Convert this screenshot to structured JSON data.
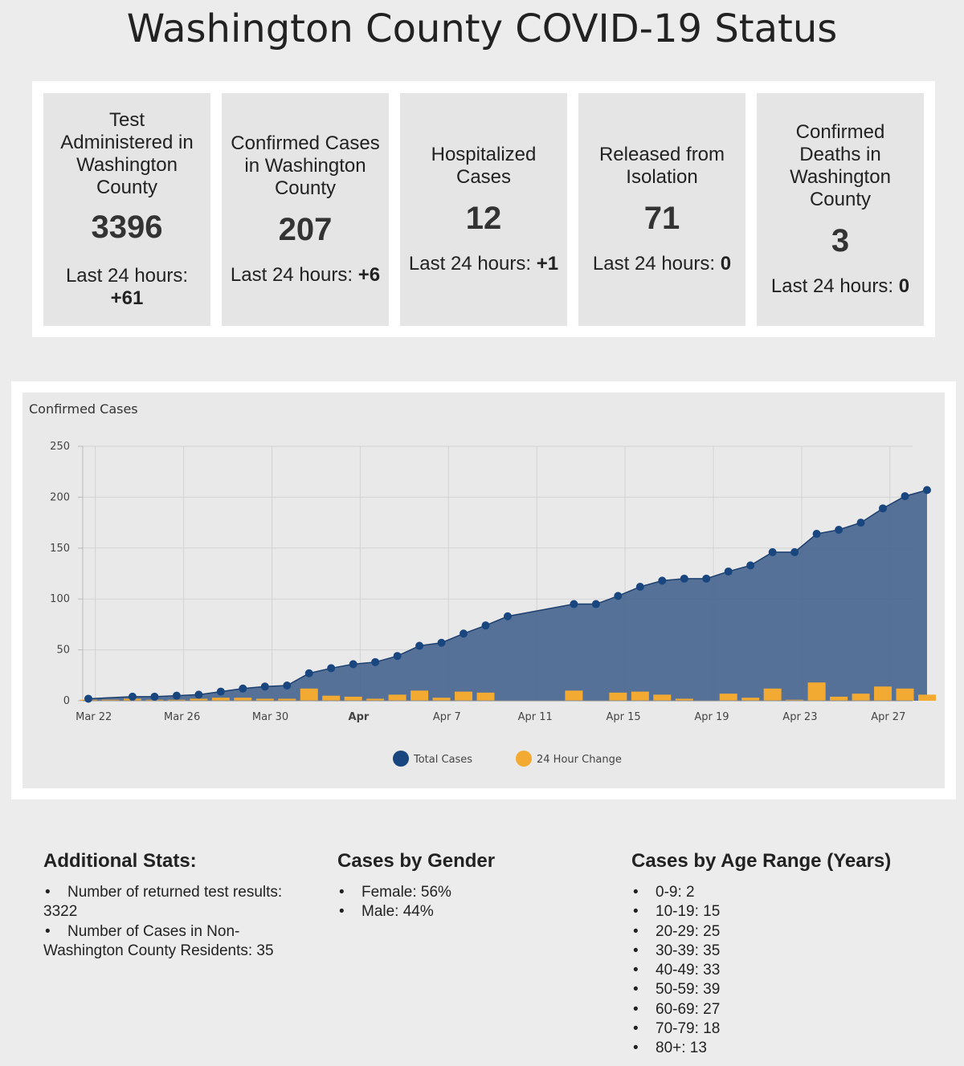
{
  "page": {
    "title": "Washington County COVID-19 Status"
  },
  "stats": [
    {
      "label": "Test Administered in Washington County",
      "value": "3396",
      "change_prefix": "Last 24 hours:",
      "change_value": "+61"
    },
    {
      "label": "Confirmed Cases in Washington County",
      "value": "207",
      "change_prefix": "Last 24 hours:",
      "change_value": "+6"
    },
    {
      "label": "Hospitalized Cases",
      "value": "12",
      "change_prefix": "Last 24 hours:",
      "change_value": "+1"
    },
    {
      "label": "Released from Isolation",
      "value": "71",
      "change_prefix": "Last 24 hours:",
      "change_value": "0"
    },
    {
      "label": "Confirmed Deaths in Washington County",
      "value": "3",
      "change_prefix": "Last 24 hours:",
      "change_value": "0"
    }
  ],
  "chart_data": {
    "type": "area",
    "title": "Confirmed Cases",
    "xlabel": "",
    "ylabel": "",
    "ylim": [
      0,
      250
    ],
    "yticks": [
      0,
      50,
      100,
      150,
      200,
      250
    ],
    "xticks": [
      {
        "day": 22,
        "label": "Mar 22",
        "bold": false
      },
      {
        "day": 26,
        "label": "Mar 26",
        "bold": false
      },
      {
        "day": 30,
        "label": "Mar 30",
        "bold": false
      },
      {
        "day": 34,
        "label": "Apr",
        "bold": true
      },
      {
        "day": 38,
        "label": "Apr 7",
        "bold": false
      },
      {
        "day": 42,
        "label": "Apr 11",
        "bold": false
      },
      {
        "day": 46,
        "label": "Apr 15",
        "bold": false
      },
      {
        "day": 50,
        "label": "Apr 19",
        "bold": false
      },
      {
        "day": 54,
        "label": "Apr 23",
        "bold": false
      },
      {
        "day": 58,
        "label": "Apr 27",
        "bold": false
      }
    ],
    "x_range": [
      21.5,
      59.1
    ],
    "series": [
      {
        "name": "Total Cases",
        "kind": "area",
        "color": "#19467f",
        "x": [
          21.9,
          23.9,
          24.9,
          25.9,
          26.9,
          27.9,
          28.9,
          29.9,
          30.9,
          31.9,
          32.9,
          33.9,
          34.9,
          35.9,
          36.9,
          37.9,
          38.9,
          39.9,
          40.9,
          43.9,
          44.9,
          45.9,
          46.9,
          47.9,
          48.9,
          49.9,
          50.9,
          51.9,
          52.9,
          53.9,
          54.9,
          55.9,
          56.9,
          57.9,
          58.9,
          59.9
        ],
        "values": [
          2,
          4,
          4,
          5,
          6,
          9,
          12,
          14,
          15,
          27,
          32,
          36,
          38,
          44,
          54,
          57,
          66,
          74,
          83,
          95,
          95,
          103,
          112,
          118,
          120,
          120,
          127,
          133,
          146,
          146,
          164,
          168,
          175,
          189,
          201,
          207
        ]
      },
      {
        "name": "24 Hour Change",
        "kind": "bar",
        "color": "#f3aa32",
        "x": [
          21.9,
          22.9,
          23.9,
          24.9,
          25.9,
          26.9,
          27.9,
          28.9,
          29.9,
          30.9,
          31.9,
          32.9,
          33.9,
          34.9,
          35.9,
          36.9,
          37.9,
          38.9,
          39.9,
          40.9,
          43.9,
          44.9,
          45.9,
          46.9,
          47.9,
          48.9,
          49.9,
          50.9,
          51.9,
          52.9,
          53.9,
          54.9,
          55.9,
          56.9,
          57.9,
          58.9,
          59.9
        ],
        "values": [
          1,
          1,
          2,
          1,
          1,
          2,
          3,
          3,
          2,
          2,
          12,
          5,
          4,
          2,
          6,
          10,
          3,
          9,
          8,
          0,
          10,
          0,
          8,
          9,
          6,
          2,
          0,
          7,
          3,
          12,
          1,
          18,
          4,
          7,
          14,
          12,
          6
        ]
      }
    ],
    "legend": {
      "placement": "bottom-center",
      "entries": [
        "Total Cases",
        "24 Hour Change"
      ]
    }
  },
  "additional": {
    "heading": "Additional Stats:",
    "items": [
      "Number of returned test results: 3322",
      "Number of Cases in Non-Washington County Residents: 35"
    ]
  },
  "gender": {
    "heading": "Cases by Gender",
    "items": [
      "Female: 56%",
      "Male: 44%"
    ]
  },
  "age": {
    "heading": "Cases by Age Range (Years)",
    "items": [
      "0-9: 2",
      "10-19: 15",
      "20-29: 25",
      "30-39: 35",
      "40-49: 33",
      "50-59: 39",
      "60-69: 27",
      "70-79: 18",
      "80+: 13"
    ]
  },
  "bullet_glyph": "•"
}
